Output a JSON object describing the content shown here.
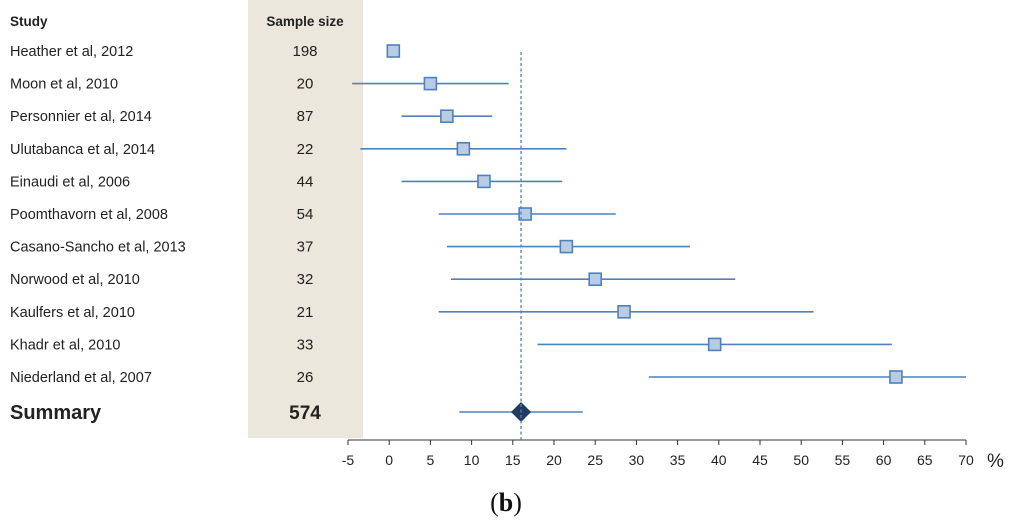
{
  "headers": {
    "study": "Study",
    "sample_size": "Sample size"
  },
  "panel_label": {
    "open": "(",
    "letter": "b",
    "close": ")"
  },
  "colors": {
    "shade": "#ece7dc",
    "line": "#4f81bd",
    "marker_fill": "#b8cce4",
    "marker_stroke": "#4f81bd",
    "summary_marker": "#1f3b5f",
    "axis": "#333333"
  },
  "chart_data": {
    "type": "forest",
    "xlabel": "%",
    "xlim": [
      -5,
      70
    ],
    "xticks": [
      -5,
      0,
      5,
      10,
      15,
      20,
      25,
      30,
      35,
      40,
      45,
      50,
      55,
      60,
      65,
      70
    ],
    "reference_line": 16,
    "studies": [
      {
        "name": "Heather et al, 2012",
        "sample_size": "198",
        "estimate": 0.5,
        "ci_low": null,
        "ci_high": null
      },
      {
        "name": "Moon et al, 2010",
        "sample_size": "20",
        "estimate": 5,
        "ci_low": -4.5,
        "ci_high": 14.5
      },
      {
        "name": "Personnier et al, 2014",
        "sample_size": "87",
        "estimate": 7,
        "ci_low": 1.5,
        "ci_high": 12.5
      },
      {
        "name": "Ulutabanca et al, 2014",
        "sample_size": "22",
        "estimate": 9,
        "ci_low": -3.5,
        "ci_high": 21.5
      },
      {
        "name": "Einaudi et al, 2006",
        "sample_size": "44",
        "estimate": 11.5,
        "ci_low": 1.5,
        "ci_high": 21
      },
      {
        "name": "Poomthavorn et al, 2008",
        "sample_size": "54",
        "estimate": 16.5,
        "ci_low": 6,
        "ci_high": 27.5
      },
      {
        "name": "Casano-Sancho et al, 2013",
        "sample_size": "37",
        "estimate": 21.5,
        "ci_low": 7,
        "ci_high": 36.5
      },
      {
        "name": "Norwood et al, 2010",
        "sample_size": "32",
        "estimate": 25,
        "ci_low": 7.5,
        "ci_high": 42
      },
      {
        "name": "Kaulfers et al, 2010",
        "sample_size": "21",
        "estimate": 28.5,
        "ci_low": 6,
        "ci_high": 51.5
      },
      {
        "name": "Khadr et al, 2010",
        "sample_size": "33",
        "estimate": 39.5,
        "ci_low": 18,
        "ci_high": 61
      },
      {
        "name": "Niederland et al, 2007",
        "sample_size": "26",
        "estimate": 61.5,
        "ci_low": 31.5,
        "ci_high": 70
      }
    ],
    "summary": {
      "name": "Summary",
      "sample_size": "574",
      "estimate": 16,
      "ci_low": 8.5,
      "ci_high": 23.5
    }
  }
}
